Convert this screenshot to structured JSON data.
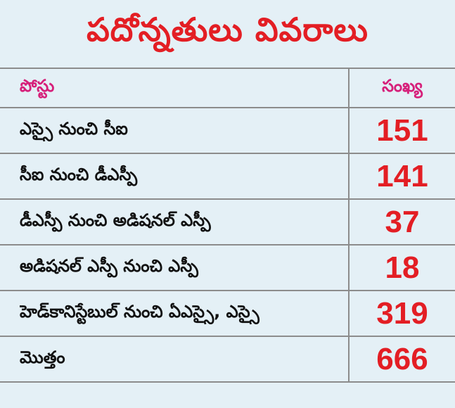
{
  "title": "పదోన్నతులు వివరాలు",
  "table": {
    "headers": {
      "post": "పోస్టు",
      "count": "సంఖ్య"
    },
    "rows": [
      {
        "label": "ఎస్సై నుంచి సీఐ",
        "value": "151"
      },
      {
        "label": "సీఐ నుంచి డీఎస్పీ",
        "value": "141"
      },
      {
        "label": "డీఎస్పీ నుంచి అడిషనల్ ఎస్పీ",
        "value": "37"
      },
      {
        "label": "అడిషనల్ ఎస్పీ నుంచి ఎస్పీ",
        "value": "18"
      },
      {
        "label": "హెడ్‌కానిస్టేబుల్ నుంచి ఏఎస్సై, ఎస్సై",
        "value": "319"
      }
    ],
    "total": {
      "label": "మొత్తం",
      "value": "666"
    }
  },
  "colors": {
    "background": "#e4f0f6",
    "title": "#e31e24",
    "header_text": "#d6207a",
    "numbers": "#e31e24",
    "rules": "#8c8c8c"
  }
}
